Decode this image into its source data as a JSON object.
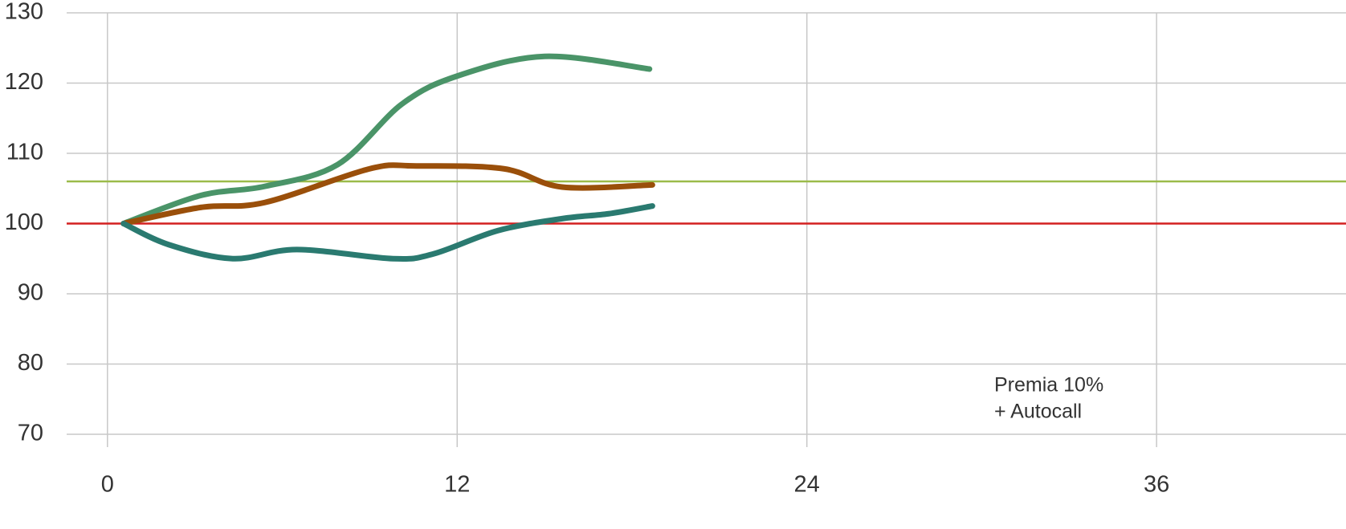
{
  "chart_data": {
    "type": "line",
    "xlim": [
      -1.4,
      42.5
    ],
    "xticks": [
      0,
      12,
      24,
      36
    ],
    "ylim": [
      70,
      130
    ],
    "yticks": [
      70,
      80,
      90,
      100,
      110,
      120,
      130
    ],
    "grid": true,
    "reference_lines": [
      {
        "value": 100,
        "color": "#d42020"
      },
      {
        "value": 106,
        "color": "#9bbb4a"
      }
    ],
    "series": [
      {
        "color": "#4a9468",
        "x": [
          0.55,
          3.2,
          5.4,
          7.9,
          10.1,
          12,
          15,
          18.6
        ],
        "values": [
          100,
          104,
          105.3,
          108.4,
          117,
          121,
          123.8,
          122
        ]
      },
      {
        "color": "#9a4f0a",
        "x": [
          0.55,
          3.2,
          5.4,
          9,
          10.6,
          13.6,
          15.6,
          18.7
        ],
        "values": [
          100,
          102.3,
          103,
          107.8,
          108.2,
          107.8,
          105.2,
          105.5
        ]
      },
      {
        "color": "#2a7a70",
        "x": [
          0.55,
          2.1,
          4.3,
          6.5,
          9.8,
          11.2,
          13.4,
          15.6,
          17.2,
          18.7
        ],
        "values": [
          100,
          97,
          95,
          96.3,
          95,
          95.7,
          99,
          100.7,
          101.4,
          102.5
        ]
      }
    ],
    "annotation": [
      "Premia 10%",
      "+ Autocall"
    ]
  }
}
